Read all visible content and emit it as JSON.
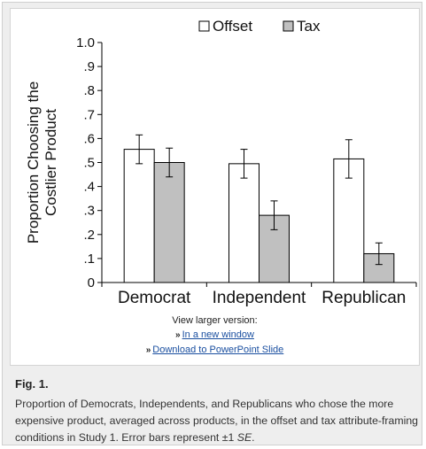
{
  "chart_data": {
    "type": "bar",
    "categories": [
      "Democrat",
      "Independent",
      "Republican"
    ],
    "series": [
      {
        "name": "Offset",
        "values": [
          0.555,
          0.495,
          0.515
        ],
        "errors": [
          0.06,
          0.06,
          0.08
        ],
        "color": "#ffffff"
      },
      {
        "name": "Tax",
        "values": [
          0.5,
          0.28,
          0.12
        ],
        "errors": [
          0.06,
          0.06,
          0.045
        ],
        "color": "#c0c0c0"
      }
    ],
    "ylabel_lines": [
      "Proportion Choosing the",
      "Costlier Product"
    ],
    "ylim": [
      0,
      1.0
    ],
    "yticks": [
      0,
      0.1,
      0.2,
      0.3,
      0.4,
      0.5,
      0.6,
      0.7,
      0.8,
      0.9,
      1.0
    ],
    "ytick_labels": [
      "0",
      ".1",
      ".2",
      ".3",
      ".4",
      ".5",
      ".6",
      ".7",
      ".8",
      ".9",
      "1.0"
    ],
    "legend_position": "top-center",
    "grid": false
  },
  "links": {
    "heading": "View larger version:",
    "new_window": "In a new window",
    "powerpoint": "Download to PowerPoint Slide"
  },
  "caption": {
    "label": "Fig. 1.",
    "text": "Proportion of Democrats, Independents, and Republicans who chose the more expensive product, averaged across products, in the offset and tax attribute-framing conditions in Study 1. Error bars represent ±1",
    "se": "SE",
    "end": "."
  }
}
